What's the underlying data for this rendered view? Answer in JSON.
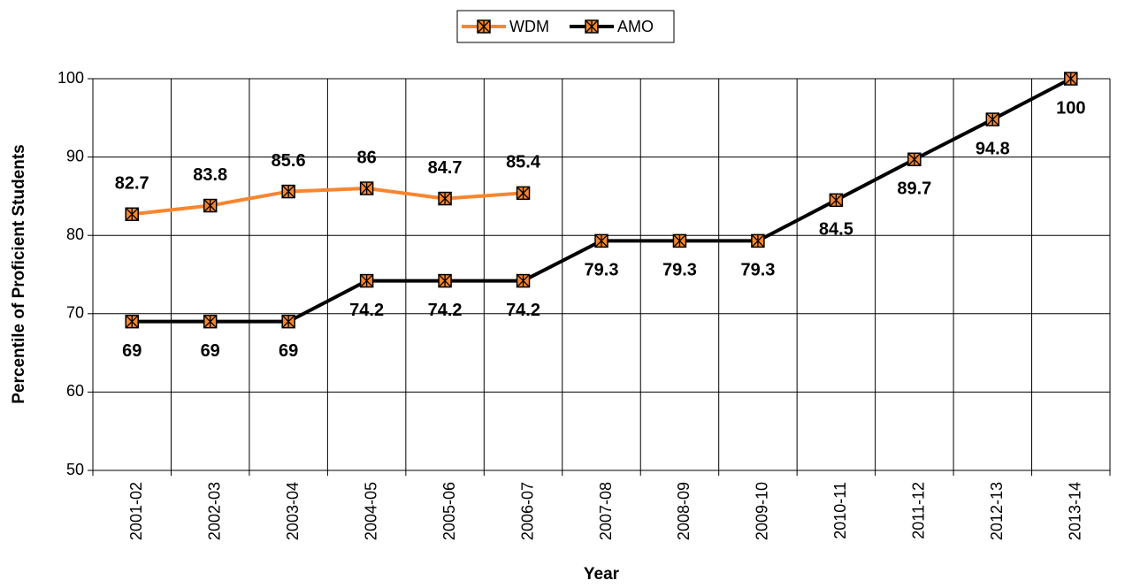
{
  "chart_data": {
    "type": "line",
    "x_label": "Year",
    "y_label": "Percentile of Proficient Students",
    "categories": [
      "2001-02",
      "2002-03",
      "2003-04",
      "2004-05",
      "2005-06",
      "2006-07",
      "2007-08",
      "2008-09",
      "2009-10",
      "2010-11",
      "2011-12",
      "2012-13",
      "2013-14"
    ],
    "series": [
      {
        "name": "WDM",
        "color": "#f7862f",
        "values": [
          82.7,
          83.8,
          85.6,
          86,
          84.7,
          85.4,
          null,
          null,
          null,
          null,
          null,
          null,
          null
        ],
        "label_position": "above"
      },
      {
        "name": "AMO",
        "color": "#000000",
        "values": [
          69,
          69,
          69,
          74.2,
          74.2,
          74.2,
          79.3,
          79.3,
          79.3,
          84.5,
          89.7,
          94.8,
          100
        ],
        "label_position": "below"
      }
    ],
    "marker_fill": "#f7862f",
    "ylim": [
      50,
      100
    ],
    "yticks": [
      50,
      60,
      70,
      80,
      90,
      100
    ],
    "grid": true,
    "legend": "top"
  }
}
